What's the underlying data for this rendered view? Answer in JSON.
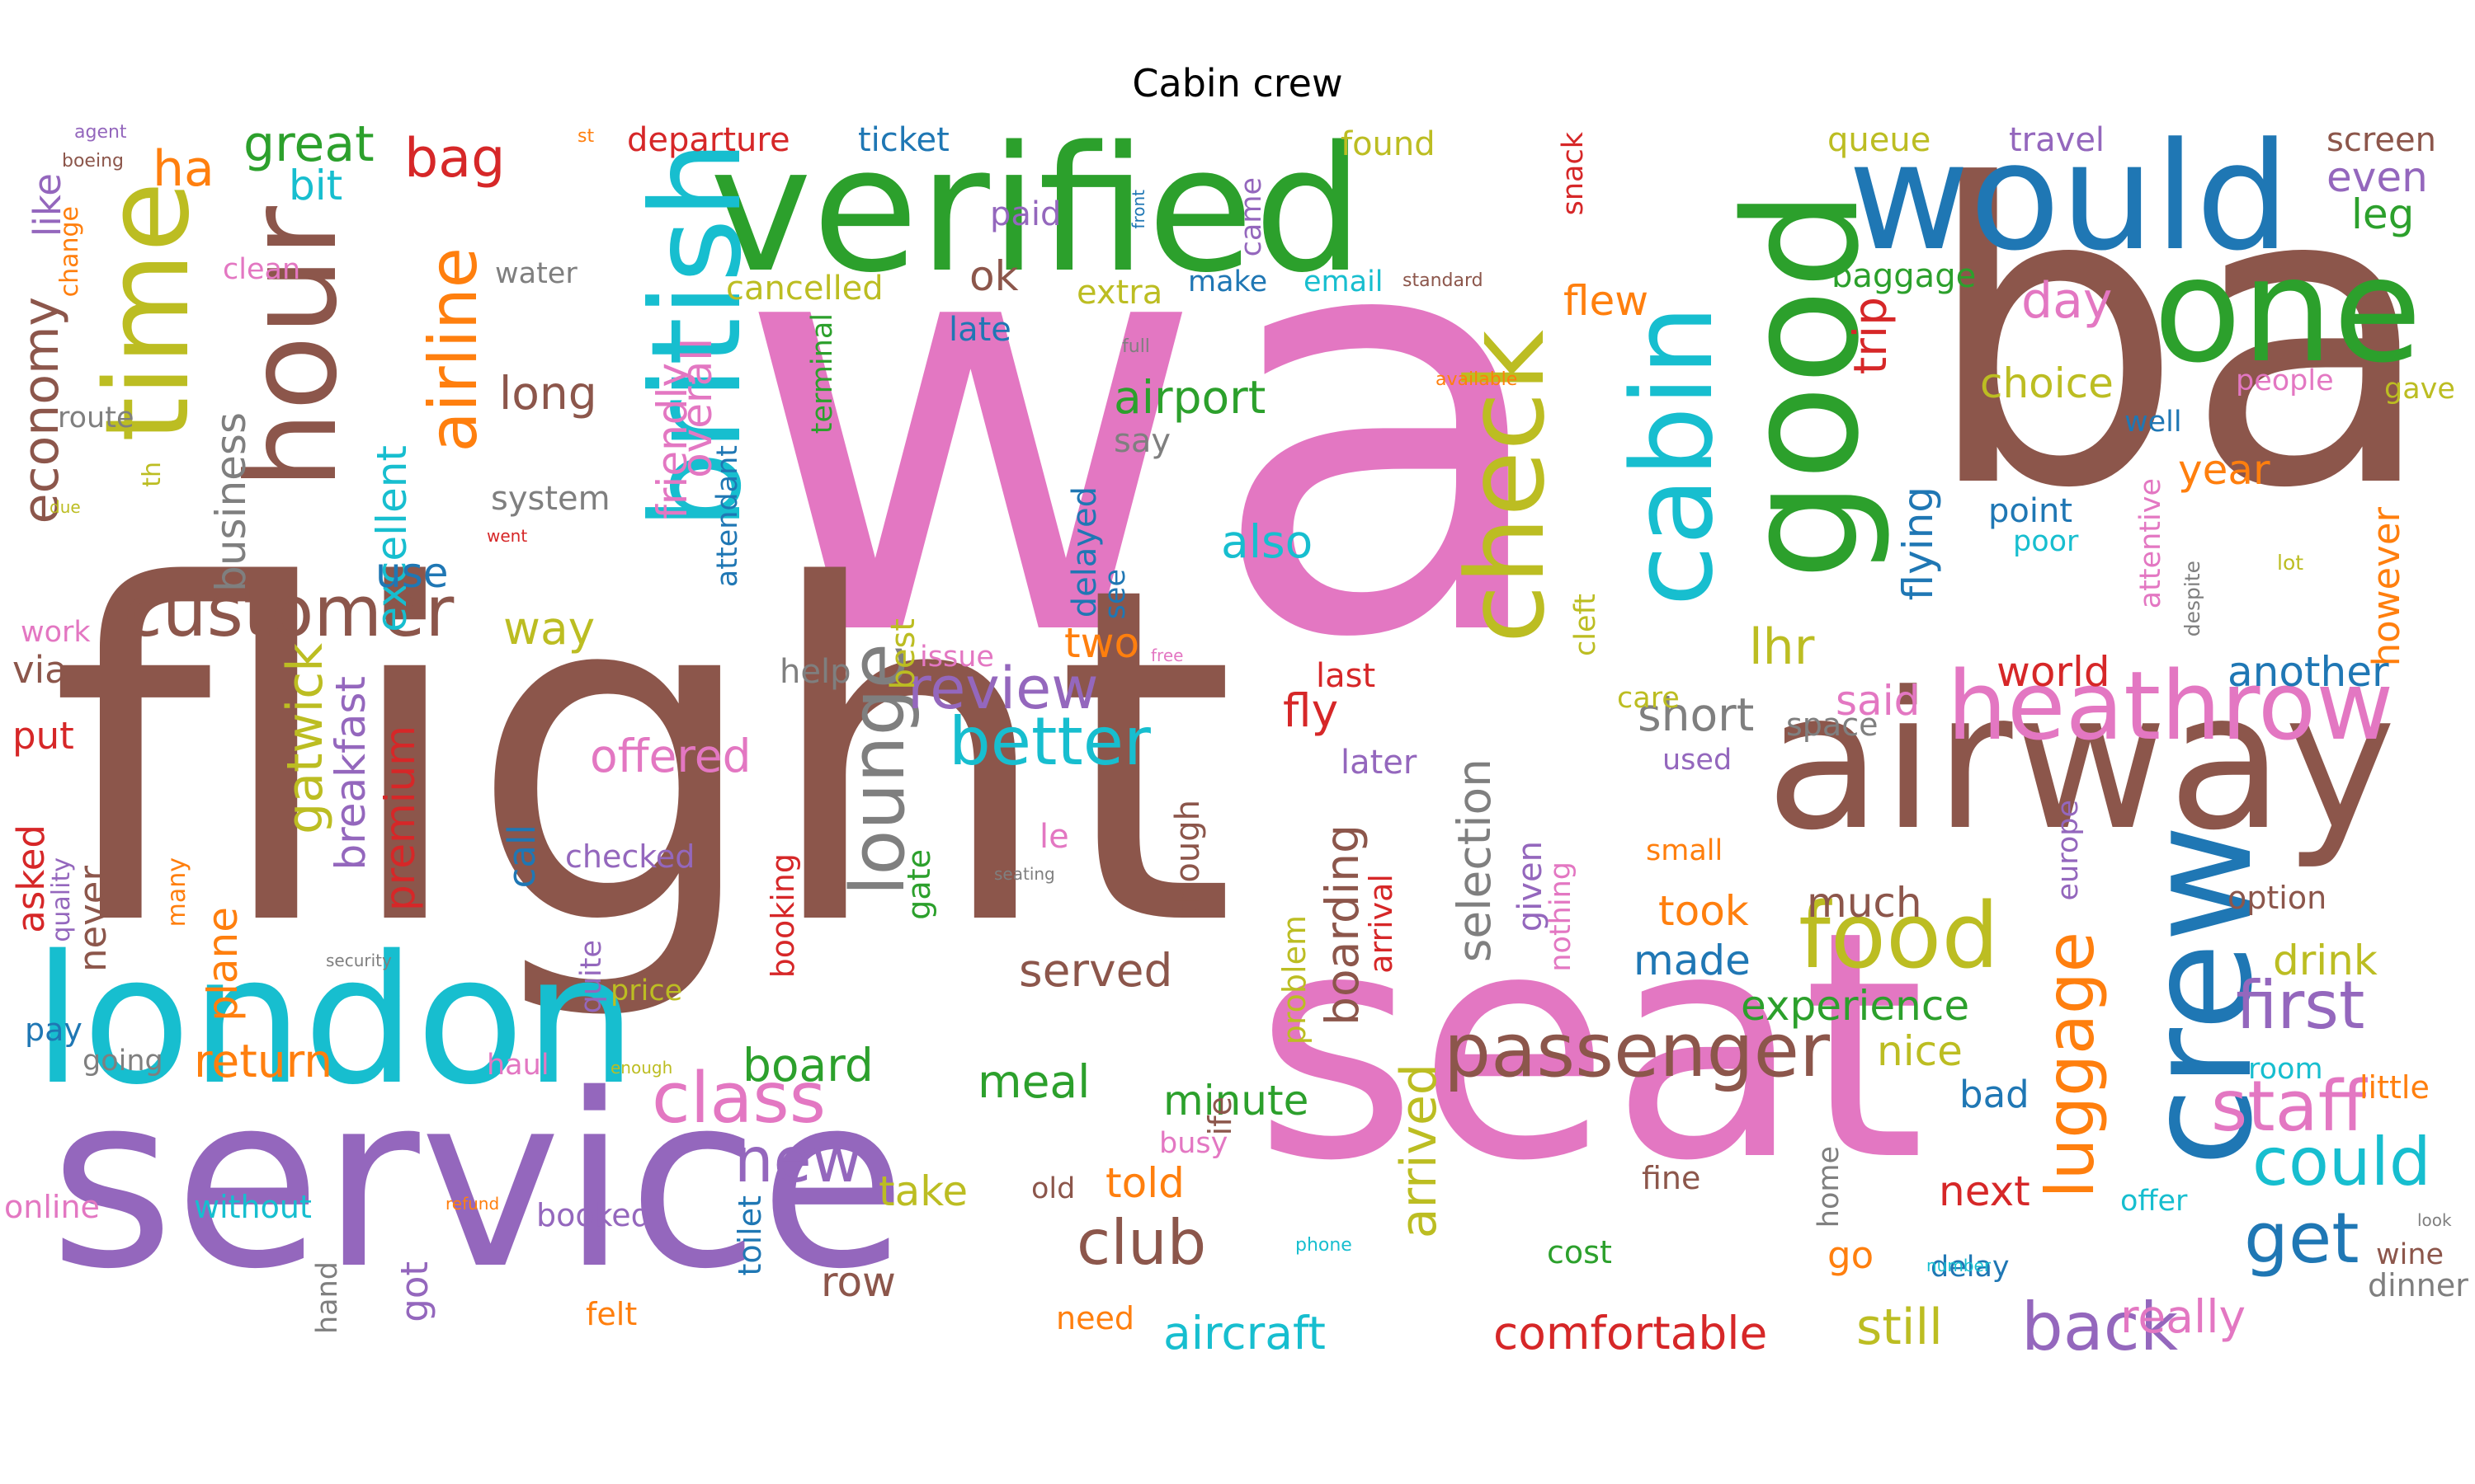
{
  "title": "Cabin crew",
  "palette": {
    "blue": "#1f77b4",
    "orange": "#ff7f0e",
    "green": "#2ca02c",
    "red": "#d62728",
    "purple": "#9467bd",
    "brown": "#8c564b",
    "pink": "#e377c2",
    "gray": "#7f7f7f",
    "olive": "#bcbd22",
    "cyan": "#17becf"
  },
  "words": [
    {
      "text": "wa",
      "color": "pink"
    },
    {
      "text": "flight",
      "color": "brown"
    },
    {
      "text": "ba",
      "color": "brown"
    },
    {
      "text": "seat",
      "color": "pink"
    },
    {
      "text": "service",
      "color": "purple"
    },
    {
      "text": "verified",
      "color": "green"
    },
    {
      "text": "british",
      "color": "cyan"
    },
    {
      "text": "london",
      "color": "cyan"
    },
    {
      "text": "airway",
      "color": "brown"
    },
    {
      "text": "would",
      "color": "blue"
    },
    {
      "text": "one",
      "color": "green"
    },
    {
      "text": "good",
      "color": "green"
    },
    {
      "text": "cabin",
      "color": "cyan"
    },
    {
      "text": "crew",
      "color": "blue"
    },
    {
      "text": "hour",
      "color": "brown"
    },
    {
      "text": "time",
      "color": "olive"
    },
    {
      "text": "check",
      "color": "olive"
    },
    {
      "text": "heathrow",
      "color": "pink"
    },
    {
      "text": "customer",
      "color": "brown"
    },
    {
      "text": "passenger",
      "color": "brown"
    },
    {
      "text": "food",
      "color": "olive"
    },
    {
      "text": "lounge",
      "color": "gray"
    },
    {
      "text": "class",
      "color": "pink"
    },
    {
      "text": "club",
      "color": "brown"
    },
    {
      "text": "airline",
      "color": "orange"
    },
    {
      "text": "staff",
      "color": "pink"
    },
    {
      "text": "first",
      "color": "purple"
    },
    {
      "text": "could",
      "color": "cyan"
    },
    {
      "text": "get",
      "color": "blue"
    },
    {
      "text": "back",
      "color": "purple"
    },
    {
      "text": "luggage",
      "color": "orange"
    },
    {
      "text": "better",
      "color": "cyan"
    },
    {
      "text": "review",
      "color": "purple"
    },
    {
      "text": "new",
      "color": "purple"
    },
    {
      "text": "bag",
      "color": "red"
    },
    {
      "text": "economy",
      "color": "brown"
    },
    {
      "text": "gatwick",
      "color": "olive"
    },
    {
      "text": "great",
      "color": "green"
    },
    {
      "text": "ha",
      "color": "orange"
    },
    {
      "text": "bit",
      "color": "cyan"
    },
    {
      "text": "aircraft",
      "color": "cyan"
    },
    {
      "text": "comfortable",
      "color": "red"
    },
    {
      "text": "still",
      "color": "olive"
    },
    {
      "text": "really",
      "color": "pink"
    },
    {
      "text": "arrived",
      "color": "olive"
    },
    {
      "text": "boarding",
      "color": "brown"
    },
    {
      "text": "selection",
      "color": "gray"
    },
    {
      "text": "meal",
      "color": "green"
    },
    {
      "text": "board",
      "color": "green"
    },
    {
      "text": "return",
      "color": "orange"
    },
    {
      "text": "plane",
      "color": "orange"
    },
    {
      "text": "breakfast",
      "color": "purple"
    },
    {
      "text": "premium",
      "color": "red"
    },
    {
      "text": "business",
      "color": "gray"
    },
    {
      "text": "excellent",
      "color": "cyan"
    },
    {
      "text": "use",
      "color": "blue"
    },
    {
      "text": "way",
      "color": "olive"
    },
    {
      "text": "friendly",
      "color": "pink"
    },
    {
      "text": "overall",
      "color": "pink"
    },
    {
      "text": "long",
      "color": "brown"
    },
    {
      "text": "system",
      "color": "gray"
    },
    {
      "text": "airport",
      "color": "green"
    },
    {
      "text": "also",
      "color": "cyan"
    },
    {
      "text": "ok",
      "color": "brown"
    },
    {
      "text": "day",
      "color": "pink"
    },
    {
      "text": "choice",
      "color": "olive"
    },
    {
      "text": "lhr",
      "color": "olive"
    },
    {
      "text": "trip",
      "color": "red"
    },
    {
      "text": "flying",
      "color": "blue"
    },
    {
      "text": "year",
      "color": "orange"
    },
    {
      "text": "however",
      "color": "orange"
    },
    {
      "text": "world",
      "color": "red"
    },
    {
      "text": "another",
      "color": "blue"
    },
    {
      "text": "short",
      "color": "gray"
    },
    {
      "text": "said",
      "color": "pink"
    },
    {
      "text": "fly",
      "color": "red"
    },
    {
      "text": "two",
      "color": "orange"
    },
    {
      "text": "offered",
      "color": "pink"
    },
    {
      "text": "served",
      "color": "brown"
    },
    {
      "text": "much",
      "color": "brown"
    },
    {
      "text": "took",
      "color": "orange"
    },
    {
      "text": "made",
      "color": "blue"
    },
    {
      "text": "experience",
      "color": "green"
    },
    {
      "text": "nice",
      "color": "olive"
    },
    {
      "text": "drink",
      "color": "olive"
    },
    {
      "text": "bad",
      "color": "blue"
    },
    {
      "text": "next",
      "color": "red"
    },
    {
      "text": "minute",
      "color": "green"
    },
    {
      "text": "told",
      "color": "orange"
    },
    {
      "text": "take",
      "color": "olive"
    },
    {
      "text": "row",
      "color": "brown"
    },
    {
      "text": "got",
      "color": "purple"
    },
    {
      "text": "asked",
      "color": "red"
    },
    {
      "text": "never",
      "color": "brown"
    },
    {
      "text": "put",
      "color": "red"
    },
    {
      "text": "via",
      "color": "brown"
    },
    {
      "text": "like",
      "color": "purple"
    },
    {
      "text": "call",
      "color": "blue"
    },
    {
      "text": "go",
      "color": "orange"
    },
    {
      "text": "delay",
      "color": "blue"
    },
    {
      "text": "given",
      "color": "purple"
    },
    {
      "text": "departure",
      "color": "red"
    },
    {
      "text": "ticket",
      "color": "blue"
    },
    {
      "text": "paid",
      "color": "purple"
    },
    {
      "text": "cancelled",
      "color": "olive"
    },
    {
      "text": "extra",
      "color": "olive"
    },
    {
      "text": "make",
      "color": "blue"
    },
    {
      "text": "email",
      "color": "cyan"
    },
    {
      "text": "late",
      "color": "blue"
    },
    {
      "text": "found",
      "color": "olive"
    },
    {
      "text": "flew",
      "color": "orange"
    },
    {
      "text": "queue",
      "color": "olive"
    },
    {
      "text": "travel",
      "color": "purple"
    },
    {
      "text": "baggage",
      "color": "green"
    },
    {
      "text": "even",
      "color": "purple"
    },
    {
      "text": "leg",
      "color": "green"
    },
    {
      "text": "screen",
      "color": "brown"
    },
    {
      "text": "people",
      "color": "pink"
    },
    {
      "text": "gave",
      "color": "olive"
    },
    {
      "text": "well",
      "color": "blue"
    },
    {
      "text": "point",
      "color": "blue"
    },
    {
      "text": "poor",
      "color": "cyan"
    },
    {
      "text": "attentive",
      "color": "pink"
    },
    {
      "text": "despite",
      "color": "gray"
    },
    {
      "text": "lot",
      "color": "olive"
    },
    {
      "text": "route",
      "color": "gray"
    },
    {
      "text": "clean",
      "color": "pink"
    },
    {
      "text": "water",
      "color": "gray"
    },
    {
      "text": "change",
      "color": "orange"
    },
    {
      "text": "agent",
      "color": "purple"
    },
    {
      "text": "boeing",
      "color": "brown"
    },
    {
      "text": "st",
      "color": "orange"
    },
    {
      "text": "th",
      "color": "olive"
    },
    {
      "text": "due",
      "color": "olive"
    },
    {
      "text": "went",
      "color": "red"
    },
    {
      "text": "work",
      "color": "pink"
    },
    {
      "text": "attendant",
      "color": "blue"
    },
    {
      "text": "terminal",
      "color": "green"
    },
    {
      "text": "delayed",
      "color": "blue"
    },
    {
      "text": "see",
      "color": "blue"
    },
    {
      "text": "say",
      "color": "gray"
    },
    {
      "text": "came",
      "color": "purple"
    },
    {
      "text": "front",
      "color": "blue"
    },
    {
      "text": "standard",
      "color": "brown"
    },
    {
      "text": "full",
      "color": "gray"
    },
    {
      "text": "snack",
      "color": "red"
    },
    {
      "text": "available",
      "color": "orange"
    },
    {
      "text": "best",
      "color": "olive"
    },
    {
      "text": "issue",
      "color": "pink"
    },
    {
      "text": "free",
      "color": "pink"
    },
    {
      "text": "help",
      "color": "gray"
    },
    {
      "text": "last",
      "color": "red"
    },
    {
      "text": "later",
      "color": "purple"
    },
    {
      "text": "used",
      "color": "purple"
    },
    {
      "text": "care",
      "color": "olive"
    },
    {
      "text": "cleft",
      "color": "olive"
    },
    {
      "text": "space",
      "color": "gray"
    },
    {
      "text": "small",
      "color": "orange"
    },
    {
      "text": "europe",
      "color": "purple"
    },
    {
      "text": "option",
      "color": "brown"
    },
    {
      "text": "room",
      "color": "cyan"
    },
    {
      "text": "little",
      "color": "orange"
    },
    {
      "text": "offer",
      "color": "cyan"
    },
    {
      "text": "look",
      "color": "gray"
    },
    {
      "text": "wine",
      "color": "brown"
    },
    {
      "text": "dinner",
      "color": "gray"
    },
    {
      "text": "number",
      "color": "cyan"
    },
    {
      "text": "home",
      "color": "gray"
    },
    {
      "text": "fine",
      "color": "brown"
    },
    {
      "text": "cost",
      "color": "green"
    },
    {
      "text": "nothing",
      "color": "pink"
    },
    {
      "text": "problem",
      "color": "olive"
    },
    {
      "text": "arrival",
      "color": "red"
    },
    {
      "text": "busy",
      "color": "pink"
    },
    {
      "text": "ife",
      "color": "brown"
    },
    {
      "text": "phone",
      "color": "cyan"
    },
    {
      "text": "need",
      "color": "orange"
    },
    {
      "text": "old",
      "color": "brown"
    },
    {
      "text": "booked",
      "color": "purple"
    },
    {
      "text": "toilet",
      "color": "blue"
    },
    {
      "text": "felt",
      "color": "orange"
    },
    {
      "text": "hand",
      "color": "gray"
    },
    {
      "text": "refund",
      "color": "orange"
    },
    {
      "text": "without",
      "color": "cyan"
    },
    {
      "text": "online",
      "color": "pink"
    },
    {
      "text": "pay",
      "color": "blue"
    },
    {
      "text": "quality",
      "color": "purple"
    },
    {
      "text": "many",
      "color": "orange"
    },
    {
      "text": "going",
      "color": "gray"
    },
    {
      "text": "haul",
      "color": "pink"
    },
    {
      "text": "enough",
      "color": "olive"
    },
    {
      "text": "price",
      "color": "olive"
    },
    {
      "text": "quite",
      "color": "purple"
    },
    {
      "text": "checked",
      "color": "purple"
    },
    {
      "text": "security",
      "color": "gray"
    },
    {
      "text": "seating",
      "color": "gray"
    },
    {
      "text": "le",
      "color": "pink"
    },
    {
      "text": "though",
      "color": "brown"
    },
    {
      "text": "gate",
      "color": "green"
    },
    {
      "text": "booking",
      "color": "red"
    }
  ]
}
